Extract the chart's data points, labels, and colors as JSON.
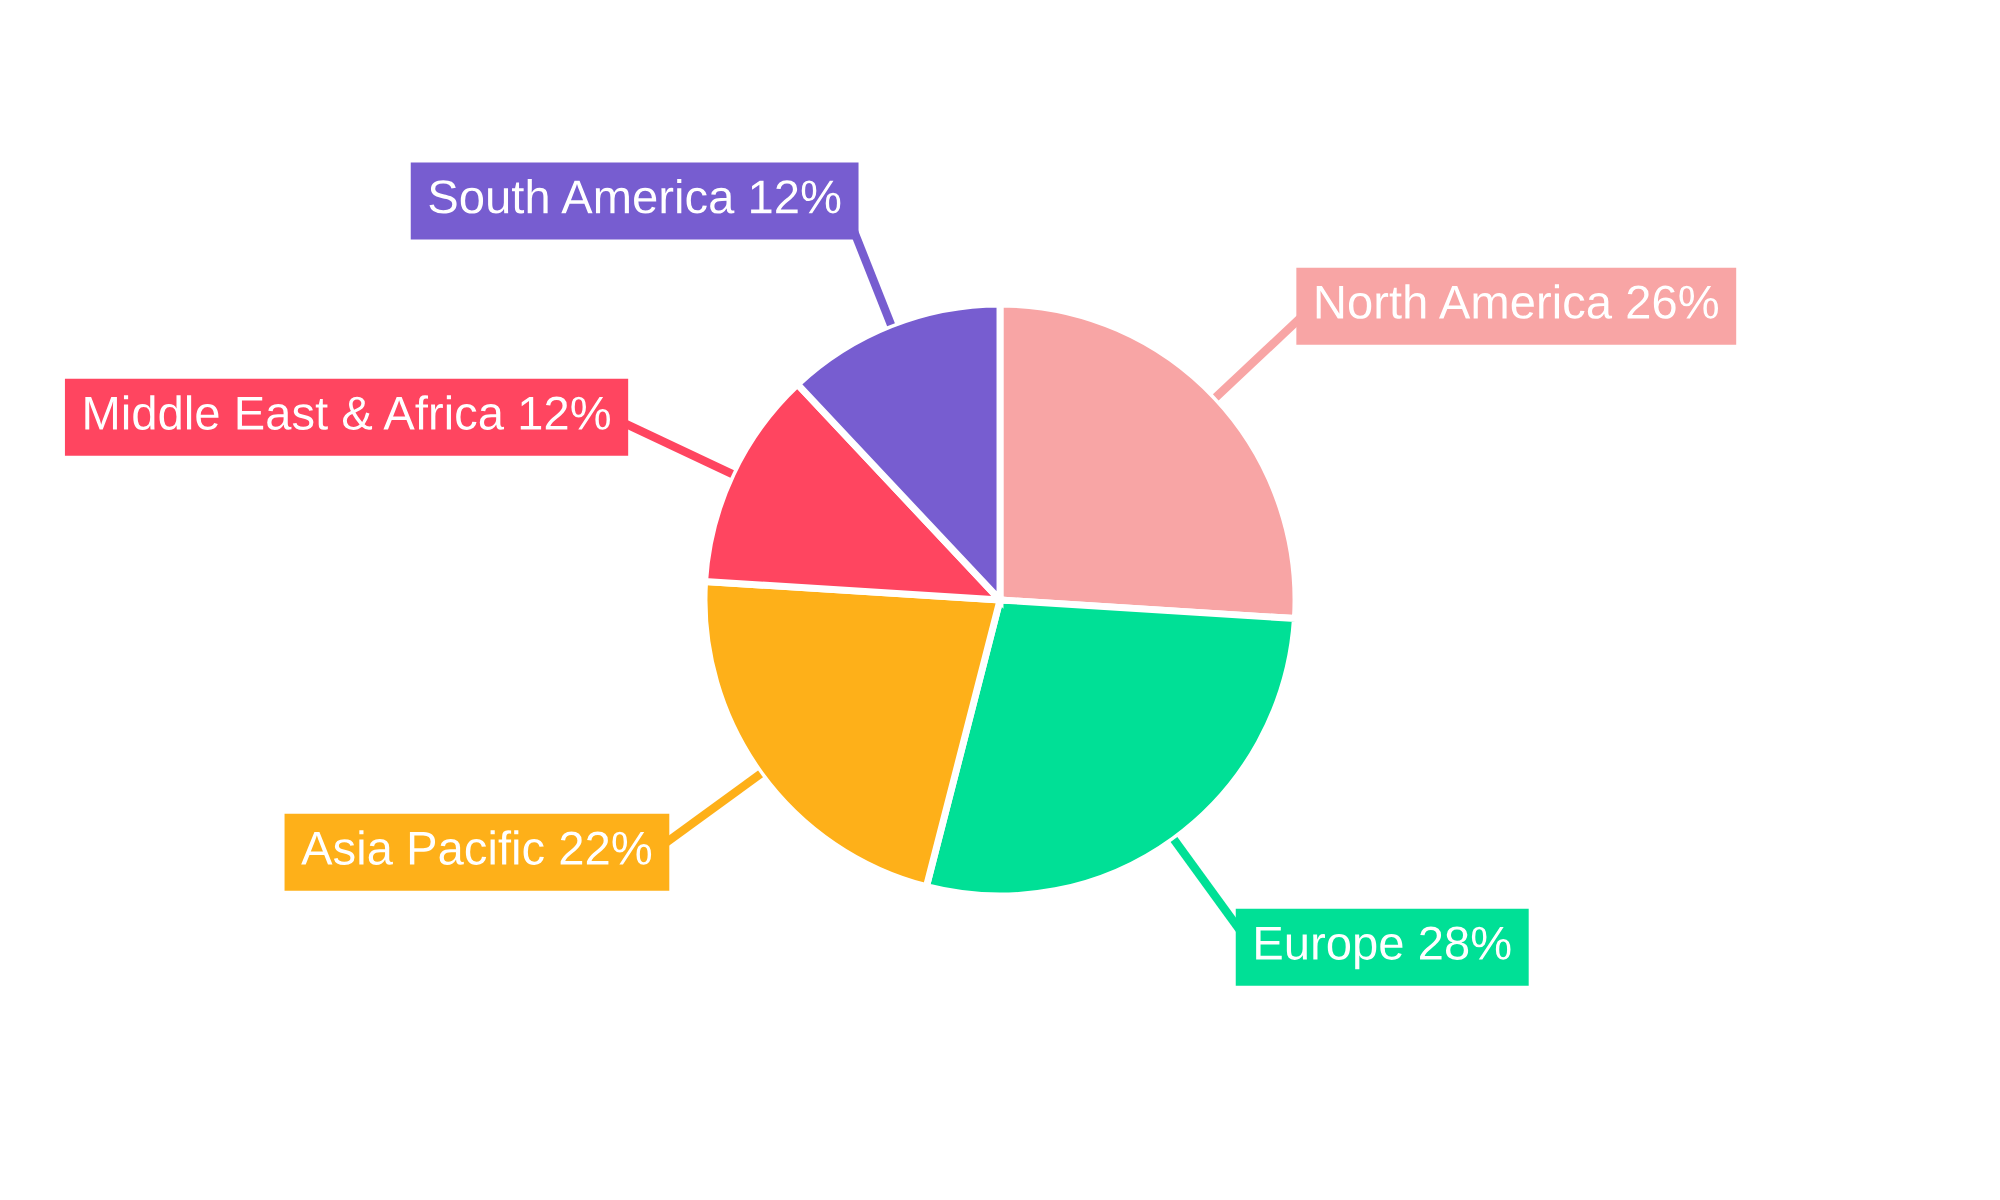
{
  "chart_data": {
    "type": "pie",
    "categories": [
      "North America",
      "Europe",
      "Asia Pacific",
      "Middle East & Africa",
      "South America"
    ],
    "values": [
      26,
      28,
      22,
      12,
      12
    ],
    "value_labels": [
      "26%",
      "28%",
      "22%",
      "12%",
      "12%"
    ],
    "colors": [
      "#f8a5a5",
      "#00e096",
      "#feb019",
      "#ff4560",
      "#775dd0"
    ]
  }
}
